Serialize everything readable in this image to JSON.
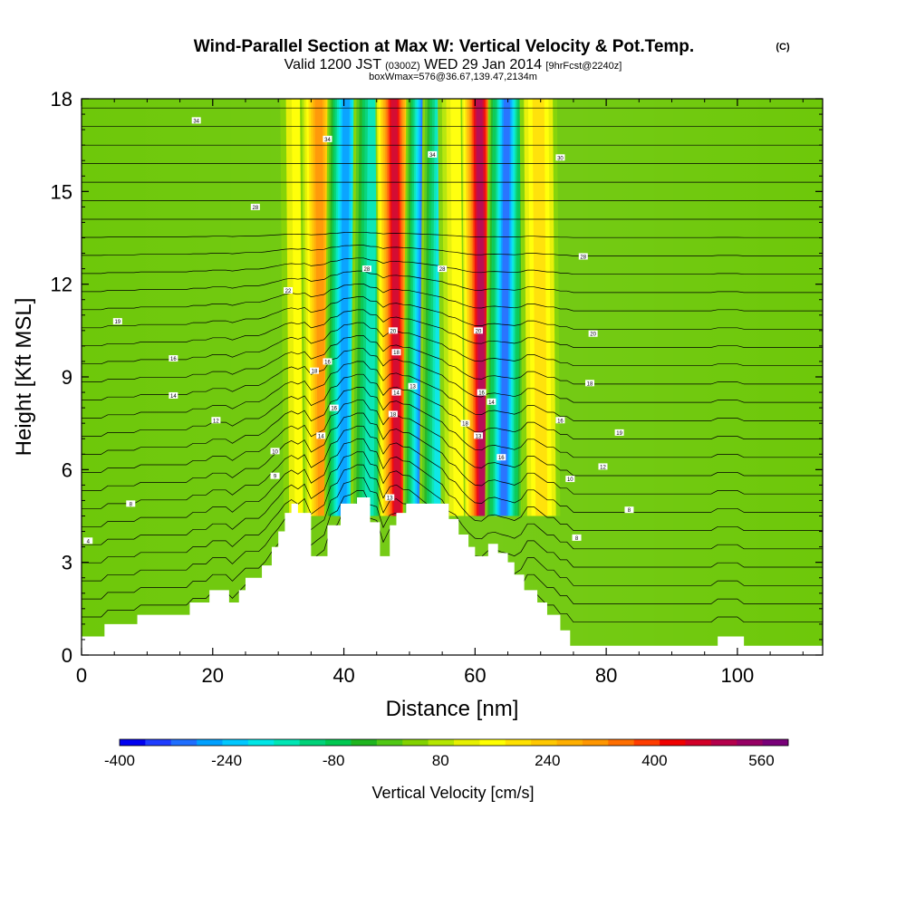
{
  "title": {
    "main": "Wind-Parallel Section at Max W: Vertical Velocity & Pot.Temp.",
    "copyright": "(C)",
    "valid_prefix": "Valid 1200 JST",
    "valid_utc": "(0300Z)",
    "valid_date": "WED 29 Jan 2014",
    "forecast": "[9hrFcst@2240z]",
    "boxwmax": "boxWmax=576@36.67,139.47,2134m"
  },
  "chart_data": {
    "type": "heatmap",
    "xlabel": "Distance [nm]",
    "ylabel": "Height [Kft MSL]",
    "xlim": [
      0,
      113
    ],
    "ylim": [
      0,
      18
    ],
    "xticks": [
      0,
      20,
      40,
      60,
      80,
      100
    ],
    "yticks": [
      0,
      3,
      6,
      9,
      12,
      15,
      18
    ],
    "colorbar": {
      "label": "Vertical Velocity [cm/s]",
      "range": [
        -400,
        600
      ],
      "ticks": [
        -400,
        -240,
        -80,
        80,
        240,
        400,
        560
      ],
      "colors": [
        "#0000f0",
        "#1e3cff",
        "#1e6eff",
        "#00a0ff",
        "#00c8ff",
        "#00e6e6",
        "#00e6b4",
        "#00d278",
        "#00c850",
        "#1eb41e",
        "#50c814",
        "#82d200",
        "#b4e600",
        "#e6f000",
        "#ffff00",
        "#ffe100",
        "#ffc800",
        "#ffaf00",
        "#ff9600",
        "#ff6e00",
        "#ff3c00",
        "#f00000",
        "#d20028",
        "#b4004b",
        "#960064",
        "#780078"
      ]
    },
    "vertical_velocity_columns": [
      {
        "x": 33.5,
        "value": 150
      },
      {
        "x": 36.5,
        "value": 330
      },
      {
        "x": 40.0,
        "value": -260
      },
      {
        "x": 44.0,
        "value": -150
      },
      {
        "x": 48.0,
        "value": 470
      },
      {
        "x": 52.0,
        "value": -300
      },
      {
        "x": 54.5,
        "value": -180
      },
      {
        "x": 57.5,
        "value": 160
      },
      {
        "x": 61.0,
        "value": 500
      },
      {
        "x": 64.5,
        "value": -320
      },
      {
        "x": 70.0,
        "value": 180
      }
    ],
    "terrain": [
      [
        0,
        0.6
      ],
      [
        3.5,
        0.6
      ],
      [
        3.5,
        1.0
      ],
      [
        8.5,
        1.0
      ],
      [
        8.5,
        1.3
      ],
      [
        16.5,
        1.3
      ],
      [
        16.5,
        1.7
      ],
      [
        19.5,
        1.7
      ],
      [
        19.5,
        2.1
      ],
      [
        22.5,
        2.1
      ],
      [
        22.5,
        1.7
      ],
      [
        24,
        1.7
      ],
      [
        24,
        2.1
      ],
      [
        25,
        2.1
      ],
      [
        25,
        2.5
      ],
      [
        27.5,
        2.5
      ],
      [
        27.5,
        2.9
      ],
      [
        29,
        2.9
      ],
      [
        29,
        3.5
      ],
      [
        30,
        3.5
      ],
      [
        30,
        4.0
      ],
      [
        31,
        4.0
      ],
      [
        31,
        4.6
      ],
      [
        32,
        4.6
      ],
      [
        32,
        4.9
      ],
      [
        33,
        4.9
      ],
      [
        33,
        4.6
      ],
      [
        35,
        4.6
      ],
      [
        35,
        3.2
      ],
      [
        37.5,
        3.2
      ],
      [
        37.5,
        4.2
      ],
      [
        39.5,
        4.2
      ],
      [
        39.5,
        4.9
      ],
      [
        42,
        4.9
      ],
      [
        42,
        5.1
      ],
      [
        44,
        5.1
      ],
      [
        44,
        4.3
      ],
      [
        45.5,
        4.3
      ],
      [
        45.5,
        3.2
      ],
      [
        47,
        3.2
      ],
      [
        47,
        4.2
      ],
      [
        48,
        4.2
      ],
      [
        48,
        4.6
      ],
      [
        49.5,
        4.6
      ],
      [
        49.5,
        4.9
      ],
      [
        56,
        4.9
      ],
      [
        56,
        4.4
      ],
      [
        57.5,
        4.4
      ],
      [
        57.5,
        3.9
      ],
      [
        59,
        3.9
      ],
      [
        59,
        3.5
      ],
      [
        60,
        3.5
      ],
      [
        60,
        3.2
      ],
      [
        62,
        3.2
      ],
      [
        62,
        3.6
      ],
      [
        63.5,
        3.6
      ],
      [
        63.5,
        3.3
      ],
      [
        65,
        3.3
      ],
      [
        65,
        3.0
      ],
      [
        66,
        3.0
      ],
      [
        66,
        2.6
      ],
      [
        67.5,
        2.6
      ],
      [
        67.5,
        2.1
      ],
      [
        69.5,
        2.1
      ],
      [
        69.5,
        1.7
      ],
      [
        71,
        1.7
      ],
      [
        71,
        1.3
      ],
      [
        73,
        1.3
      ],
      [
        73,
        0.8
      ],
      [
        74.5,
        0.8
      ],
      [
        74.5,
        0.3
      ],
      [
        97,
        0.3
      ],
      [
        97,
        0.6
      ],
      [
        101,
        0.6
      ],
      [
        101,
        0.3
      ],
      [
        113,
        0.3
      ]
    ],
    "theta_contour_labels": [
      {
        "x": 17.5,
        "y": 17.3,
        "text": "34"
      },
      {
        "x": 26.5,
        "y": 14.5,
        "text": "28"
      },
      {
        "x": 31.5,
        "y": 11.8,
        "text": "22"
      },
      {
        "x": 5.5,
        "y": 10.8,
        "text": "19"
      },
      {
        "x": 14,
        "y": 9.6,
        "text": "16"
      },
      {
        "x": 14,
        "y": 8.4,
        "text": "14"
      },
      {
        "x": 20.5,
        "y": 7.6,
        "text": "12"
      },
      {
        "x": 29.5,
        "y": 6.6,
        "text": "10"
      },
      {
        "x": 29.5,
        "y": 5.8,
        "text": "9"
      },
      {
        "x": 7.5,
        "y": 4.9,
        "text": "8"
      },
      {
        "x": 1,
        "y": 3.7,
        "text": "4"
      },
      {
        "x": 37.5,
        "y": 16.7,
        "text": "34"
      },
      {
        "x": 43.5,
        "y": 12.5,
        "text": "28"
      },
      {
        "x": 35.5,
        "y": 9.2,
        "text": "18"
      },
      {
        "x": 37.5,
        "y": 9.5,
        "text": "16"
      },
      {
        "x": 38.5,
        "y": 8.0,
        "text": "16"
      },
      {
        "x": 36.5,
        "y": 7.1,
        "text": "14"
      },
      {
        "x": 47.5,
        "y": 10.5,
        "text": "20"
      },
      {
        "x": 48,
        "y": 9.8,
        "text": "18"
      },
      {
        "x": 48,
        "y": 8.5,
        "text": "14"
      },
      {
        "x": 50.5,
        "y": 8.7,
        "text": "13"
      },
      {
        "x": 47.5,
        "y": 7.8,
        "text": "18"
      },
      {
        "x": 47,
        "y": 5.1,
        "text": "13"
      },
      {
        "x": 53.5,
        "y": 16.2,
        "text": "34"
      },
      {
        "x": 55,
        "y": 12.5,
        "text": "28"
      },
      {
        "x": 60.5,
        "y": 10.5,
        "text": "20"
      },
      {
        "x": 61,
        "y": 8.5,
        "text": "16"
      },
      {
        "x": 62.5,
        "y": 8.2,
        "text": "14"
      },
      {
        "x": 58.5,
        "y": 7.5,
        "text": "18"
      },
      {
        "x": 60.5,
        "y": 7.1,
        "text": "13"
      },
      {
        "x": 64,
        "y": 6.4,
        "text": "16"
      },
      {
        "x": 73,
        "y": 16.1,
        "text": "30"
      },
      {
        "x": 76.5,
        "y": 12.9,
        "text": "28"
      },
      {
        "x": 78,
        "y": 10.4,
        "text": "20"
      },
      {
        "x": 77.5,
        "y": 8.8,
        "text": "18"
      },
      {
        "x": 73,
        "y": 7.6,
        "text": "16"
      },
      {
        "x": 82,
        "y": 7.2,
        "text": "19"
      },
      {
        "x": 79.5,
        "y": 6.1,
        "text": "12"
      },
      {
        "x": 74.5,
        "y": 5.7,
        "text": "10"
      },
      {
        "x": 83.5,
        "y": 4.7,
        "text": "8"
      },
      {
        "x": 75.5,
        "y": 3.8,
        "text": "8"
      }
    ]
  }
}
